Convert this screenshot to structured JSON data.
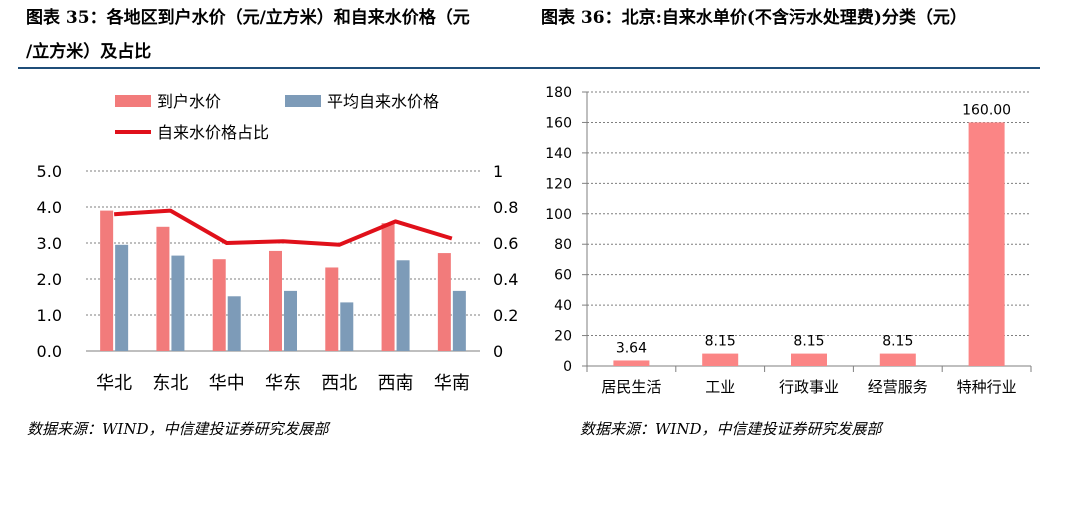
{
  "fig35": {
    "title_line1": "图表 35：各地区到户水价（元/立方米）和自来水价格（元",
    "title_line2": "/立方米）及占比",
    "source": "数据来源：WIND，中信建投证券研究发展部"
  },
  "fig36": {
    "title": "图表 36：北京:自来水单价(不含污水处理费)分类（元）",
    "source": "数据来源：WIND，中信建投证券研究发展部"
  },
  "colors": {
    "pink": "#f27b7b",
    "steel": "#7d9bb8",
    "red_line": "#e0101a",
    "salmon": "#fb8585",
    "rule": "#1f4e79"
  },
  "chart_data": [
    {
      "type": "bar",
      "categories": [
        "华北",
        "东北",
        "华中",
        "华东",
        "西北",
        "西南",
        "华南"
      ],
      "series": [
        {
          "name": "到户水价",
          "kind": "bar",
          "axis": "left",
          "values": [
            3.9,
            3.45,
            2.55,
            2.78,
            2.32,
            3.55,
            2.72
          ]
        },
        {
          "name": "平均自来水价格",
          "kind": "bar",
          "axis": "left",
          "values": [
            2.95,
            2.65,
            1.52,
            1.67,
            1.35,
            2.52,
            1.67
          ]
        },
        {
          "name": "自来水价格占比",
          "kind": "line",
          "axis": "right",
          "values": [
            0.76,
            0.78,
            0.6,
            0.61,
            0.59,
            0.72,
            0.625
          ]
        }
      ],
      "ylim": [
        0,
        5
      ],
      "yticks": [
        "0.0",
        "1.0",
        "2.0",
        "3.0",
        "4.0",
        "5.0"
      ],
      "y2lim": [
        0,
        1
      ],
      "y2ticks": [
        "0",
        "0.2",
        "0.4",
        "0.6",
        "0.8",
        "1"
      ],
      "grid": true,
      "legend": "top-left"
    },
    {
      "type": "bar",
      "categories": [
        "居民生活",
        "工业",
        "行政事业",
        "经营服务",
        "特种行业"
      ],
      "values": [
        3.64,
        8.15,
        8.15,
        8.15,
        160.0
      ],
      "data_labels": [
        "3.64",
        "8.15",
        "8.15",
        "8.15",
        "160.00"
      ],
      "ylim": [
        0,
        180
      ],
      "yticks": [
        "0",
        "20",
        "40",
        "60",
        "80",
        "100",
        "120",
        "140",
        "160",
        "180"
      ],
      "grid": true,
      "legend": "none"
    }
  ]
}
